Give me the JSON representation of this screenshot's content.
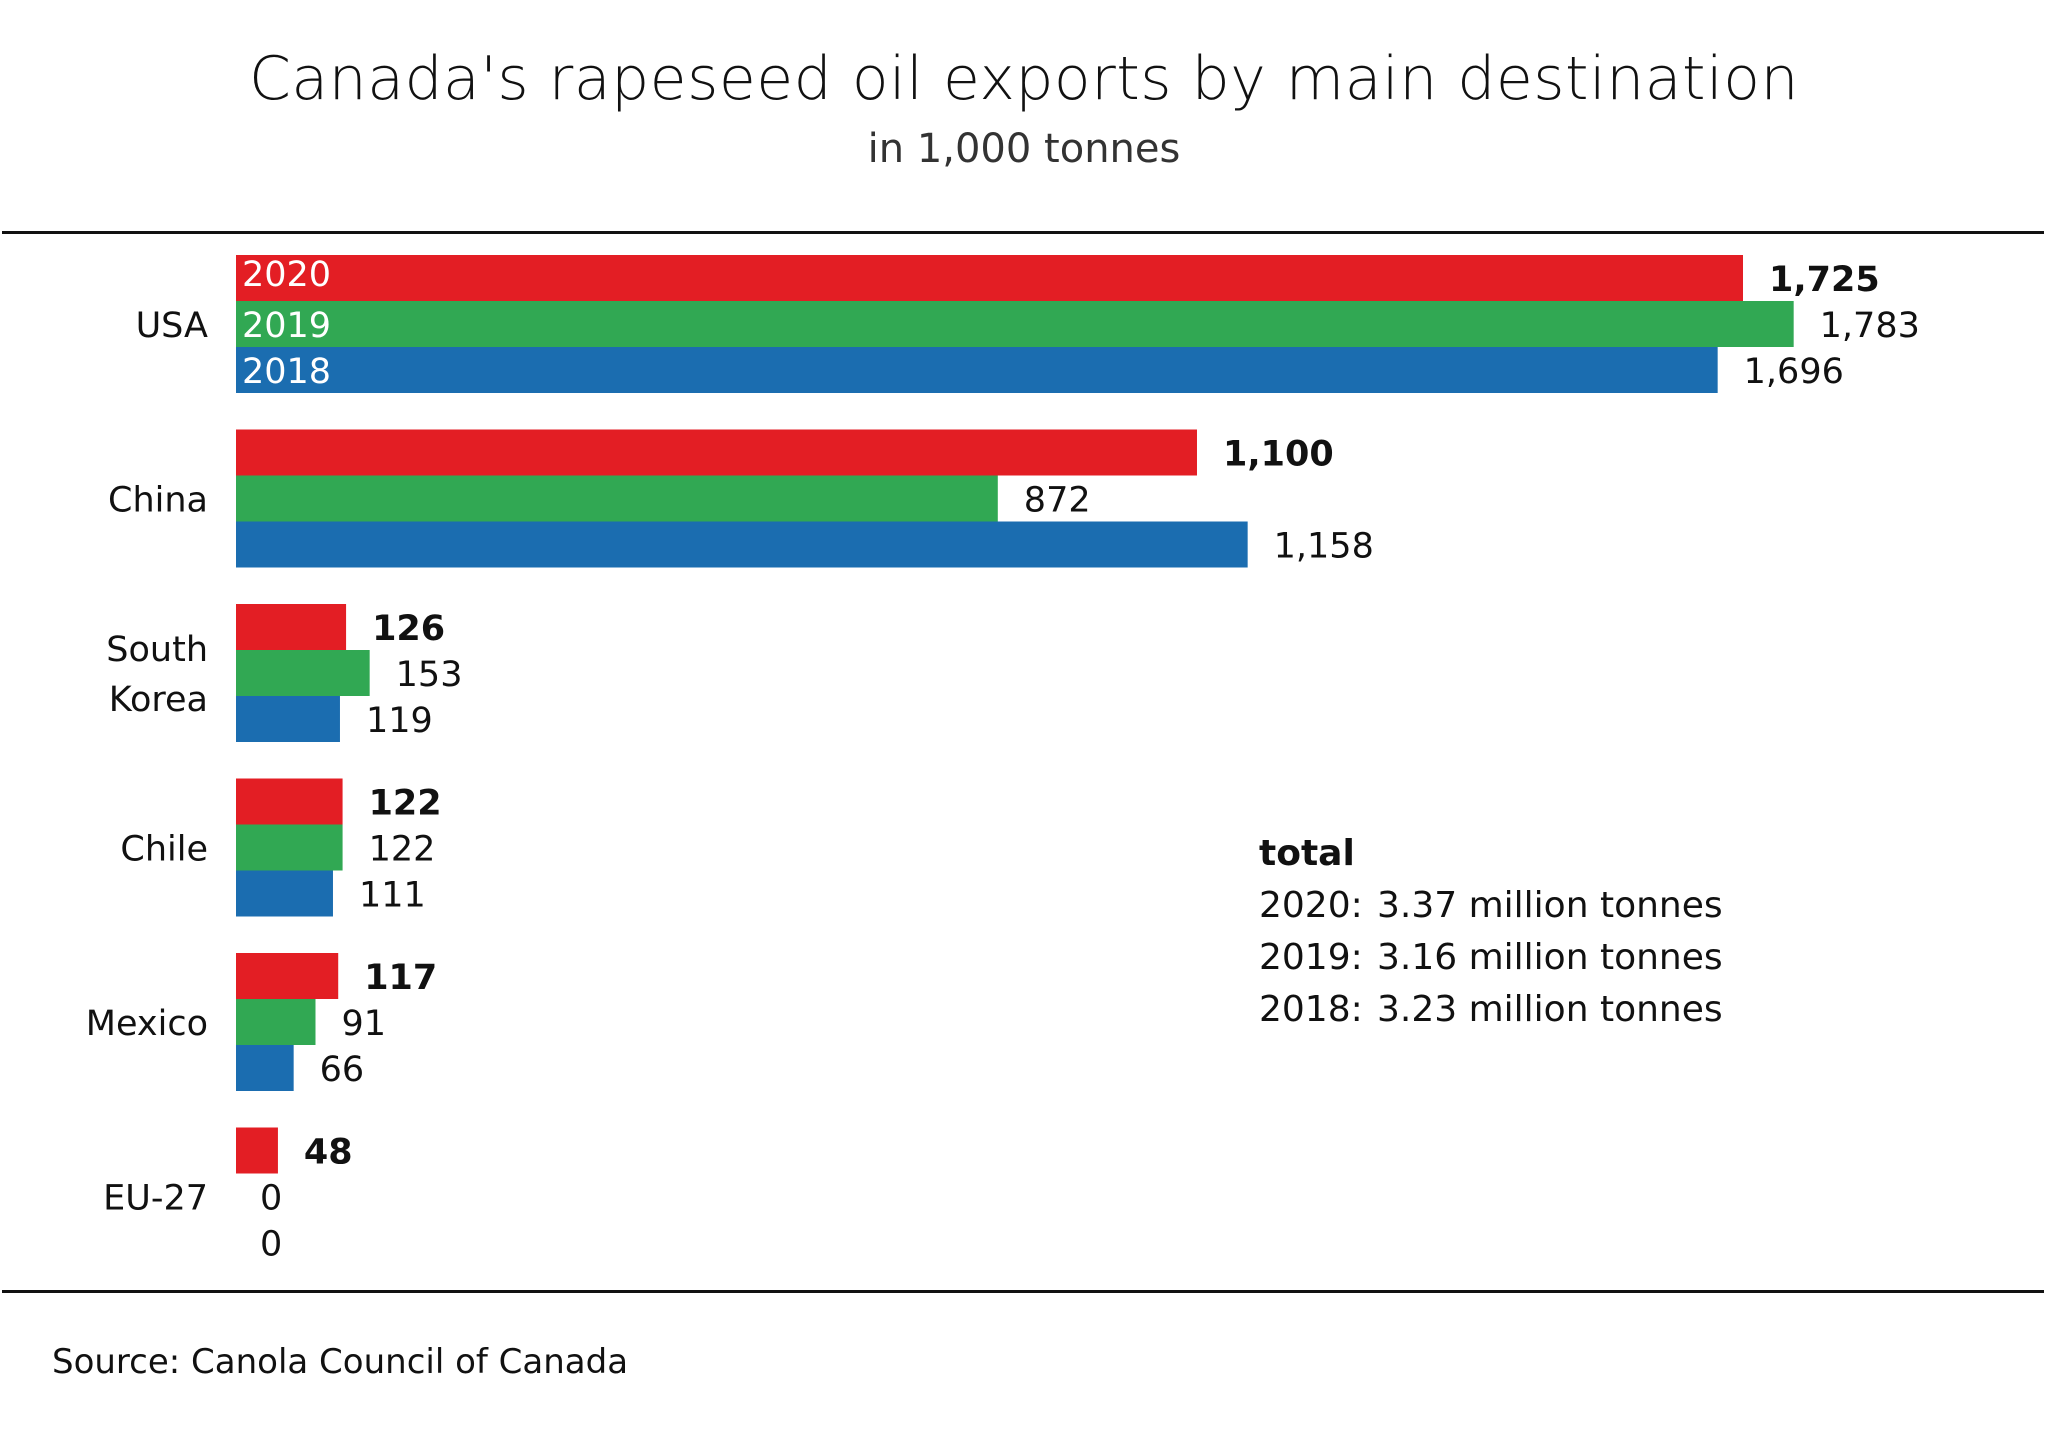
{
  "title": "Canada's rapeseed oil exports by main destination",
  "subtitle": "in 1,000 tonnes",
  "source": "Source: Canola Council of Canada",
  "colors": {
    "2020": "#e31e24",
    "2019": "#31a853",
    "2018": "#1b6db0"
  },
  "totals": {
    "heading": "total",
    "rows": [
      {
        "year": "2020:",
        "value": "3.37 million tonnes"
      },
      {
        "year": "2019:",
        "value": "3.16 million tonnes"
      },
      {
        "year": "2018:",
        "value": "3.23 million tonnes"
      }
    ]
  },
  "chart_data": {
    "type": "bar",
    "orientation": "horizontal",
    "title": "Canada's rapeseed oil exports by main destination",
    "subtitle": "in 1,000 tonnes",
    "xlabel": "",
    "ylabel": "",
    "xlim": [
      0,
      1783
    ],
    "grid": false,
    "legend": "inline-in-first-group",
    "categories": [
      "USA",
      "China",
      "South Korea",
      "Chile",
      "Mexico",
      "EU-27"
    ],
    "category_labels": [
      [
        "USA"
      ],
      [
        "China"
      ],
      [
        "South",
        "Korea"
      ],
      [
        "Chile"
      ],
      [
        "Mexico"
      ],
      [
        "EU-27"
      ]
    ],
    "series": [
      {
        "name": "2020",
        "color": "#e31e24",
        "bold_labels": true,
        "values": [
          1725,
          1100,
          126,
          122,
          117,
          48
        ],
        "labels": [
          "1,725",
          "1,100",
          "126",
          "122",
          "117",
          "48"
        ]
      },
      {
        "name": "2019",
        "color": "#31a853",
        "bold_labels": false,
        "values": [
          1783,
          872,
          153,
          122,
          91,
          0
        ],
        "labels": [
          "1,783",
          "872",
          "153",
          "122",
          "91",
          "0"
        ]
      },
      {
        "name": "2018",
        "color": "#1b6db0",
        "bold_labels": false,
        "values": [
          1696,
          1158,
          119,
          111,
          66,
          0
        ],
        "labels": [
          "1,696",
          "1,158",
          "119",
          "111",
          "66",
          "0"
        ]
      }
    ]
  }
}
